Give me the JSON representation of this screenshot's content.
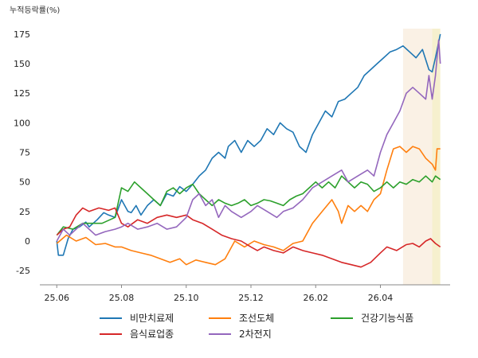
{
  "chart_data": {
    "type": "line",
    "ylabel": "누적등락률(%)",
    "y_ticks": [
      -25,
      0,
      25,
      50,
      75,
      100,
      125,
      150,
      175
    ],
    "ylim": [
      -37,
      185
    ],
    "x_ticks": [
      "25.06",
      "25.08",
      "25.10",
      "25.12",
      "26.02",
      "26.04"
    ],
    "x_tick_positions": [
      0,
      2,
      4,
      6,
      8,
      10
    ],
    "xlim": [
      -0.4,
      12.4
    ],
    "shaded_regions": [
      {
        "x_start": 10.7,
        "x_end": 11.6,
        "color": "#f6e5cf",
        "opacity": 0.55
      },
      {
        "x_start": 11.6,
        "x_end": 11.85,
        "color": "#efe3a6",
        "opacity": 0.55
      }
    ],
    "legend_position": "bottom",
    "series": [
      {
        "name": "비만치료제",
        "color": "#1f77b4",
        "points": [
          [
            0,
            0
          ],
          [
            0.05,
            -12
          ],
          [
            0.2,
            -12
          ],
          [
            0.35,
            2
          ],
          [
            0.5,
            10
          ],
          [
            0.7,
            12
          ],
          [
            0.9,
            16
          ],
          [
            1.0,
            12
          ],
          [
            1.25,
            18
          ],
          [
            1.45,
            24
          ],
          [
            1.6,
            22
          ],
          [
            1.8,
            20
          ],
          [
            2.0,
            35
          ],
          [
            2.2,
            25
          ],
          [
            2.3,
            24
          ],
          [
            2.45,
            30
          ],
          [
            2.6,
            22
          ],
          [
            2.8,
            30
          ],
          [
            3.0,
            35
          ],
          [
            3.2,
            30
          ],
          [
            3.4,
            40
          ],
          [
            3.6,
            38
          ],
          [
            3.8,
            46
          ],
          [
            4.0,
            42
          ],
          [
            4.2,
            48
          ],
          [
            4.4,
            55
          ],
          [
            4.6,
            60
          ],
          [
            4.8,
            70
          ],
          [
            5.0,
            75
          ],
          [
            5.2,
            70
          ],
          [
            5.3,
            80
          ],
          [
            5.5,
            85
          ],
          [
            5.7,
            75
          ],
          [
            5.9,
            85
          ],
          [
            6.1,
            80
          ],
          [
            6.3,
            85
          ],
          [
            6.5,
            95
          ],
          [
            6.7,
            90
          ],
          [
            6.9,
            100
          ],
          [
            7.1,
            95
          ],
          [
            7.3,
            92
          ],
          [
            7.5,
            80
          ],
          [
            7.7,
            75
          ],
          [
            7.9,
            90
          ],
          [
            8.1,
            100
          ],
          [
            8.3,
            110
          ],
          [
            8.5,
            105
          ],
          [
            8.7,
            118
          ],
          [
            8.9,
            120
          ],
          [
            9.1,
            125
          ],
          [
            9.3,
            130
          ],
          [
            9.5,
            140
          ],
          [
            9.7,
            145
          ],
          [
            9.9,
            150
          ],
          [
            10.1,
            155
          ],
          [
            10.3,
            160
          ],
          [
            10.5,
            162
          ],
          [
            10.7,
            165
          ],
          [
            10.9,
            160
          ],
          [
            11.1,
            155
          ],
          [
            11.3,
            162
          ],
          [
            11.5,
            145
          ],
          [
            11.6,
            143
          ],
          [
            11.7,
            155
          ],
          [
            11.85,
            175
          ]
        ]
      },
      {
        "name": "조선도체",
        "color": "#ff7f0e",
        "points": [
          [
            0,
            -2
          ],
          [
            0.3,
            5
          ],
          [
            0.6,
            0
          ],
          [
            0.9,
            3
          ],
          [
            1.2,
            -3
          ],
          [
            1.5,
            -2
          ],
          [
            1.8,
            -5
          ],
          [
            2.0,
            -5
          ],
          [
            2.3,
            -8
          ],
          [
            2.6,
            -10
          ],
          [
            2.9,
            -12
          ],
          [
            3.2,
            -15
          ],
          [
            3.5,
            -18
          ],
          [
            3.8,
            -15
          ],
          [
            4.0,
            -20
          ],
          [
            4.3,
            -16
          ],
          [
            4.6,
            -18
          ],
          [
            4.9,
            -20
          ],
          [
            5.2,
            -15
          ],
          [
            5.5,
            0
          ],
          [
            5.8,
            -5
          ],
          [
            6.1,
            0
          ],
          [
            6.4,
            -3
          ],
          [
            6.7,
            -5
          ],
          [
            7.0,
            -8
          ],
          [
            7.3,
            -2
          ],
          [
            7.6,
            0
          ],
          [
            7.9,
            15
          ],
          [
            8.2,
            25
          ],
          [
            8.5,
            35
          ],
          [
            8.7,
            25
          ],
          [
            8.8,
            15
          ],
          [
            9.0,
            30
          ],
          [
            9.2,
            25
          ],
          [
            9.4,
            30
          ],
          [
            9.6,
            25
          ],
          [
            9.8,
            35
          ],
          [
            10.0,
            40
          ],
          [
            10.2,
            60
          ],
          [
            10.4,
            78
          ],
          [
            10.6,
            80
          ],
          [
            10.8,
            75
          ],
          [
            11.0,
            80
          ],
          [
            11.2,
            78
          ],
          [
            11.4,
            70
          ],
          [
            11.6,
            65
          ],
          [
            11.7,
            60
          ],
          [
            11.75,
            78
          ],
          [
            11.85,
            78
          ]
        ]
      },
      {
        "name": "건강기능식품",
        "color": "#2ca02c",
        "points": [
          [
            0,
            5
          ],
          [
            0.2,
            12
          ],
          [
            0.5,
            10
          ],
          [
            0.8,
            15
          ],
          [
            1.0,
            15
          ],
          [
            1.4,
            15
          ],
          [
            1.8,
            20
          ],
          [
            2.0,
            45
          ],
          [
            2.2,
            42
          ],
          [
            2.4,
            50
          ],
          [
            2.6,
            45
          ],
          [
            2.8,
            40
          ],
          [
            3.0,
            35
          ],
          [
            3.2,
            30
          ],
          [
            3.4,
            42
          ],
          [
            3.6,
            45
          ],
          [
            3.8,
            40
          ],
          [
            4.0,
            45
          ],
          [
            4.2,
            48
          ],
          [
            4.4,
            40
          ],
          [
            4.6,
            35
          ],
          [
            4.8,
            30
          ],
          [
            5.0,
            35
          ],
          [
            5.2,
            32
          ],
          [
            5.4,
            30
          ],
          [
            5.6,
            32
          ],
          [
            5.8,
            35
          ],
          [
            6.0,
            30
          ],
          [
            6.2,
            32
          ],
          [
            6.4,
            35
          ],
          [
            6.6,
            34
          ],
          [
            6.8,
            32
          ],
          [
            7.0,
            30
          ],
          [
            7.2,
            35
          ],
          [
            7.4,
            38
          ],
          [
            7.6,
            40
          ],
          [
            7.8,
            45
          ],
          [
            8.0,
            50
          ],
          [
            8.2,
            45
          ],
          [
            8.4,
            50
          ],
          [
            8.6,
            45
          ],
          [
            8.8,
            55
          ],
          [
            9.0,
            50
          ],
          [
            9.2,
            45
          ],
          [
            9.4,
            50
          ],
          [
            9.6,
            48
          ],
          [
            9.8,
            42
          ],
          [
            10.0,
            45
          ],
          [
            10.2,
            50
          ],
          [
            10.4,
            45
          ],
          [
            10.6,
            50
          ],
          [
            10.8,
            48
          ],
          [
            11.0,
            52
          ],
          [
            11.2,
            50
          ],
          [
            11.4,
            55
          ],
          [
            11.6,
            50
          ],
          [
            11.7,
            55
          ],
          [
            11.85,
            52
          ]
        ]
      },
      {
        "name": "음식료업종",
        "color": "#d62728",
        "points": [
          [
            0,
            5
          ],
          [
            0.2,
            10
          ],
          [
            0.4,
            12
          ],
          [
            0.6,
            22
          ],
          [
            0.8,
            28
          ],
          [
            1.0,
            25
          ],
          [
            1.3,
            28
          ],
          [
            1.6,
            26
          ],
          [
            1.8,
            28
          ],
          [
            2.0,
            15
          ],
          [
            2.2,
            12
          ],
          [
            2.5,
            18
          ],
          [
            2.8,
            15
          ],
          [
            3.1,
            20
          ],
          [
            3.4,
            22
          ],
          [
            3.7,
            20
          ],
          [
            4.0,
            22
          ],
          [
            4.2,
            18
          ],
          [
            4.5,
            15
          ],
          [
            4.8,
            10
          ],
          [
            5.1,
            5
          ],
          [
            5.4,
            2
          ],
          [
            5.7,
            0
          ],
          [
            6.0,
            -5
          ],
          [
            6.2,
            -8
          ],
          [
            6.4,
            -5
          ],
          [
            6.7,
            -8
          ],
          [
            7.0,
            -10
          ],
          [
            7.3,
            -5
          ],
          [
            7.6,
            -8
          ],
          [
            7.9,
            -10
          ],
          [
            8.2,
            -12
          ],
          [
            8.5,
            -15
          ],
          [
            8.8,
            -18
          ],
          [
            9.1,
            -20
          ],
          [
            9.4,
            -22
          ],
          [
            9.7,
            -18
          ],
          [
            10.0,
            -10
          ],
          [
            10.2,
            -5
          ],
          [
            10.5,
            -8
          ],
          [
            10.8,
            -3
          ],
          [
            11.0,
            -2
          ],
          [
            11.2,
            -5
          ],
          [
            11.4,
            0
          ],
          [
            11.55,
            2
          ],
          [
            11.7,
            -2
          ],
          [
            11.85,
            -5
          ]
        ]
      },
      {
        "name": "2차전지",
        "color": "#9467bd",
        "points": [
          [
            0,
            0
          ],
          [
            0.2,
            10
          ],
          [
            0.4,
            5
          ],
          [
            0.6,
            10
          ],
          [
            0.8,
            15
          ],
          [
            1.0,
            10
          ],
          [
            1.2,
            5
          ],
          [
            1.5,
            8
          ],
          [
            1.8,
            10
          ],
          [
            2.0,
            12
          ],
          [
            2.2,
            15
          ],
          [
            2.5,
            10
          ],
          [
            2.8,
            12
          ],
          [
            3.1,
            15
          ],
          [
            3.4,
            10
          ],
          [
            3.7,
            12
          ],
          [
            4.0,
            20
          ],
          [
            4.2,
            35
          ],
          [
            4.4,
            40
          ],
          [
            4.6,
            30
          ],
          [
            4.8,
            35
          ],
          [
            5.0,
            20
          ],
          [
            5.2,
            30
          ],
          [
            5.4,
            25
          ],
          [
            5.7,
            20
          ],
          [
            6.0,
            25
          ],
          [
            6.2,
            30
          ],
          [
            6.5,
            25
          ],
          [
            6.8,
            20
          ],
          [
            7.0,
            25
          ],
          [
            7.3,
            28
          ],
          [
            7.6,
            35
          ],
          [
            7.9,
            45
          ],
          [
            8.2,
            50
          ],
          [
            8.5,
            55
          ],
          [
            8.8,
            60
          ],
          [
            9.0,
            50
          ],
          [
            9.3,
            55
          ],
          [
            9.6,
            60
          ],
          [
            9.8,
            55
          ],
          [
            10.0,
            75
          ],
          [
            10.2,
            90
          ],
          [
            10.4,
            100
          ],
          [
            10.6,
            110
          ],
          [
            10.8,
            125
          ],
          [
            11.0,
            130
          ],
          [
            11.2,
            125
          ],
          [
            11.4,
            120
          ],
          [
            11.5,
            140
          ],
          [
            11.6,
            120
          ],
          [
            11.7,
            140
          ],
          [
            11.8,
            170
          ],
          [
            11.85,
            150
          ]
        ]
      }
    ]
  }
}
